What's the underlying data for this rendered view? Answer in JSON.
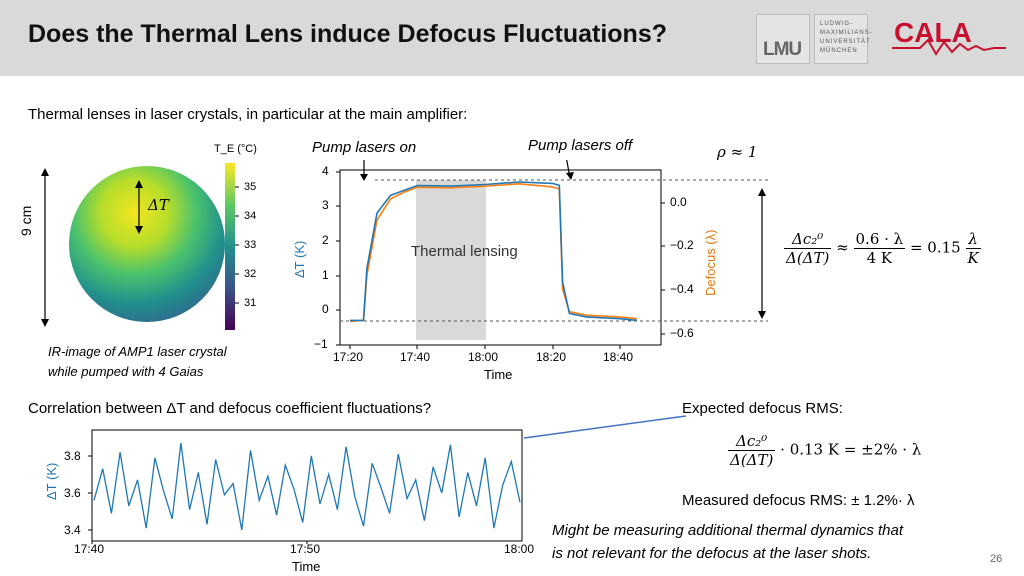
{
  "header": {
    "title": "Does the Thermal Lens induce Defocus Fluctuations?",
    "logo_lmu": "LMU",
    "logo_uni_lines": [
      "LUDWIG-",
      "MAXIMILIANS-",
      "UNIVERSITÄT",
      "MÜNCHEN"
    ],
    "logo_cala": "CALA"
  },
  "intro_text": "Thermal lenses in laser crystals, in particular at the main amplifier:",
  "ir_image": {
    "colorbar_label": "T_E (°C)",
    "colorbar_ticks": [
      "35",
      "34",
      "33",
      "32",
      "31"
    ],
    "delta_t_label": "ΔT",
    "size_label": "9 cm",
    "caption_line1": "IR-image of AMP1 laser crystal",
    "caption_line2": "while pumped with 4 Gaias"
  },
  "main_plot": {
    "annotation_on": "Pump lasers on",
    "annotation_off": "Pump lasers off",
    "shaded_label": "Thermal lensing",
    "ylabel": "ΔT (K)",
    "y2label": "Defocus (λ)",
    "xlabel": "Time",
    "y_ticks": [
      "4",
      "3",
      "2",
      "1",
      "0",
      "−1"
    ],
    "y2_ticks": [
      "0.0",
      "−0.2",
      "−0.4",
      "−0.6"
    ],
    "x_ticks": [
      "17:20",
      "17:40",
      "18:00",
      "18:20",
      "18:40"
    ],
    "colors": {
      "dt": "#1f77b4",
      "defocus": "#ff7f0e",
      "shade": "#d9d9d9",
      "y2axis": "#e07a10",
      "yaxis": "#1f77b4"
    }
  },
  "chart_data": [
    {
      "type": "line",
      "xlabel": "Time",
      "ylabel": "ΔT (K)",
      "y2label": "Defocus (λ)",
      "ylim": [
        -1,
        4
      ],
      "y2lim": [
        -0.7,
        0.12
      ],
      "x": [
        "17:20",
        "17:24",
        "17:25",
        "17:28",
        "17:32",
        "17:36",
        "17:40",
        "17:50",
        "18:00",
        "18:10",
        "18:20",
        "18:22",
        "18:23",
        "18:25",
        "18:30",
        "18:40",
        "18:45"
      ],
      "series": [
        {
          "values": [
            -0.3,
            -0.3,
            1.2,
            2.8,
            3.3,
            3.5,
            3.55,
            3.6,
            3.65,
            3.65,
            3.7,
            3.6,
            0.8,
            -0.1,
            -0.2,
            -0.25,
            -0.3
          ]
        },
        {
          "values": [
            -0.33,
            -0.3,
            1.0,
            2.6,
            3.2,
            3.45,
            3.5,
            3.55,
            3.6,
            3.6,
            3.6,
            3.5,
            0.6,
            -0.05,
            -0.15,
            -0.2,
            -0.25
          ]
        }
      ],
      "shaded_region": {
        "x_start": "17:40",
        "x_end": "18:00",
        "label": "Thermal lensing"
      }
    },
    {
      "type": "line",
      "xlabel": "Time",
      "ylabel": "ΔT (K)",
      "y_ticks": [
        "3.8",
        "3.6",
        "3.4"
      ],
      "x_ticks": [
        "17:40",
        "17:50",
        "18:00"
      ],
      "ylim": [
        3.33,
        3.93
      ],
      "series": [
        {
          "values": [
            3.55,
            3.72,
            3.48,
            3.81,
            3.52,
            3.66,
            3.4,
            3.78,
            3.6,
            3.45,
            3.86,
            3.5,
            3.7,
            3.42,
            3.77,
            3.58,
            3.64,
            3.39,
            3.82,
            3.55,
            3.68,
            3.47,
            3.74,
            3.61,
            3.43,
            3.79,
            3.53,
            3.69,
            3.5,
            3.84,
            3.57,
            3.41,
            3.75,
            3.62,
            3.48,
            3.8,
            3.56,
            3.66,
            3.44,
            3.73,
            3.59,
            3.85,
            3.46,
            3.7,
            3.52,
            3.78,
            3.4,
            3.63,
            3.76,
            3.54
          ]
        }
      ]
    }
  ],
  "right_math": {
    "rho": "ρ ≈ 1",
    "eq_num": "Δc₂⁰",
    "eq_den": "Δ(ΔT)",
    "approx": "≈",
    "mid_num": "0.6 · λ",
    "mid_den": "4 K",
    "eq_result": "= 0.15",
    "res_num": "λ",
    "res_den": "K"
  },
  "correlation_text": "Correlation between ΔT and defocus coefficient fluctuations?",
  "expected": {
    "title": "Expected defocus RMS:",
    "num": "Δc₂⁰",
    "den": "Δ(ΔT)",
    "rest": "· 0.13 K = ±2% · λ",
    "measured": "Measured defocus RMS: ± 1.2%· λ"
  },
  "bottom_plot": {
    "ylabel": "ΔT (K)",
    "xlabel": "Time",
    "y_ticks": [
      "3.8",
      "3.6",
      "3.4"
    ],
    "x_ticks": [
      "17:40",
      "17:50",
      "18:00"
    ],
    "color": "#1f77b4"
  },
  "note_line1": "Might be measuring additional thermal dynamics that",
  "note_line2": "is not relevant for the defocus at the laser shots.",
  "page_number": "26"
}
